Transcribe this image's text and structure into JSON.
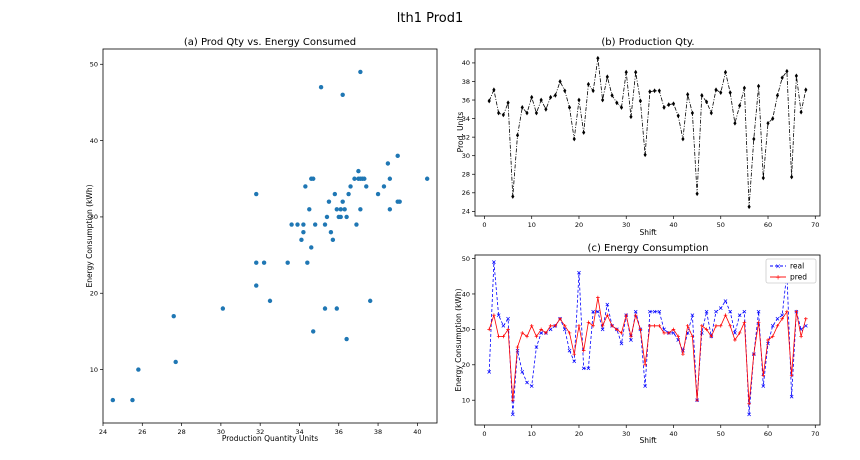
{
  "figure": {
    "title": "lth1 Prod1"
  },
  "chart_data": [
    {
      "type": "scatter",
      "title": "(a) Prod Qty vs. Energy Consumed",
      "xlabel": "Production Quantity Units",
      "ylabel": "Energy Consumption (kWh)",
      "xlim": [
        24,
        41
      ],
      "ylim": [
        3,
        52
      ],
      "xticks": [
        24,
        26,
        28,
        30,
        32,
        34,
        36,
        38,
        40
      ],
      "yticks": [
        10,
        20,
        30,
        40,
        50
      ],
      "color": "#1f77b4",
      "points": [
        [
          24.5,
          6
        ],
        [
          25.5,
          6
        ],
        [
          25.8,
          10
        ],
        [
          27.6,
          17
        ],
        [
          27.7,
          11
        ],
        [
          30.1,
          18
        ],
        [
          31.8,
          33
        ],
        [
          31.8,
          24
        ],
        [
          31.8,
          21
        ],
        [
          32.2,
          24
        ],
        [
          32.5,
          19
        ],
        [
          33.4,
          24
        ],
        [
          33.6,
          29
        ],
        [
          33.9,
          29
        ],
        [
          34.1,
          27
        ],
        [
          34.2,
          29
        ],
        [
          34.2,
          28
        ],
        [
          34.3,
          34
        ],
        [
          34.4,
          24
        ],
        [
          34.5,
          31
        ],
        [
          34.6,
          35
        ],
        [
          34.6,
          26
        ],
        [
          34.7,
          35
        ],
        [
          34.7,
          15
        ],
        [
          34.8,
          29
        ],
        [
          35.1,
          47
        ],
        [
          35.3,
          29
        ],
        [
          35.3,
          18
        ],
        [
          35.4,
          30
        ],
        [
          35.5,
          32
        ],
        [
          35.6,
          28
        ],
        [
          35.7,
          27
        ],
        [
          35.8,
          33
        ],
        [
          35.9,
          31
        ],
        [
          35.9,
          18
        ],
        [
          36.0,
          30
        ],
        [
          36.1,
          31
        ],
        [
          36.1,
          30
        ],
        [
          36.2,
          32
        ],
        [
          36.2,
          46
        ],
        [
          36.3,
          31
        ],
        [
          36.4,
          30
        ],
        [
          36.4,
          14
        ],
        [
          36.5,
          33
        ],
        [
          36.6,
          34
        ],
        [
          36.8,
          35
        ],
        [
          36.9,
          29
        ],
        [
          37.0,
          35
        ],
        [
          37.0,
          36
        ],
        [
          37.1,
          35
        ],
        [
          37.1,
          49
        ],
        [
          37.1,
          31
        ],
        [
          37.2,
          35
        ],
        [
          37.3,
          35
        ],
        [
          37.4,
          34
        ],
        [
          37.6,
          19
        ],
        [
          38.0,
          33
        ],
        [
          38.3,
          34
        ],
        [
          38.5,
          37
        ],
        [
          38.6,
          35
        ],
        [
          38.6,
          31
        ],
        [
          39.0,
          38
        ],
        [
          39.0,
          32
        ],
        [
          39.1,
          32
        ],
        [
          40.5,
          35
        ]
      ]
    },
    {
      "type": "line",
      "title": "(b) Production Qty.",
      "xlabel": "Shift",
      "ylabel": "Prod. Units",
      "xlim": [
        -2,
        71
      ],
      "ylim": [
        23.5,
        41.5
      ],
      "xticks": [
        0,
        10,
        20,
        30,
        40,
        50,
        60,
        70
      ],
      "yticks": [
        24,
        26,
        28,
        30,
        32,
        34,
        36,
        38,
        40
      ],
      "color": "#000000",
      "x": [
        1,
        2,
        3,
        4,
        5,
        6,
        7,
        8,
        9,
        10,
        11,
        12,
        13,
        14,
        15,
        16,
        17,
        18,
        19,
        20,
        21,
        22,
        23,
        24,
        25,
        26,
        27,
        28,
        29,
        30,
        31,
        32,
        33,
        34,
        35,
        36,
        37,
        38,
        39,
        40,
        41,
        42,
        43,
        44,
        45,
        46,
        47,
        48,
        49,
        50,
        51,
        52,
        53,
        54,
        55,
        56,
        57,
        58,
        59,
        60,
        61,
        62,
        63,
        64,
        65,
        66,
        67,
        68
      ],
      "y": [
        35.9,
        37.1,
        34.6,
        34.4,
        35.7,
        25.6,
        32.2,
        35.2,
        34.6,
        36.3,
        34.6,
        36.0,
        35.0,
        36.3,
        36.5,
        38.0,
        37.0,
        35.2,
        31.8,
        36.0,
        32.5,
        37.7,
        37.0,
        40.5,
        36.0,
        38.5,
        36.5,
        35.7,
        35.2,
        39.0,
        34.2,
        39.0,
        35.9,
        30.1,
        36.9,
        37.0,
        37.0,
        35.2,
        35.5,
        35.6,
        34.3,
        31.8,
        36.6,
        34.6,
        25.9,
        36.5,
        35.8,
        34.6,
        37.1,
        36.8,
        39.0,
        36.8,
        33.5,
        35.4,
        37.3,
        24.5,
        31.8,
        37.5,
        27.6,
        33.5,
        34.0,
        36.5,
        38.4,
        39.1,
        27.7,
        38.6,
        34.7,
        37.1
      ]
    },
    {
      "type": "line",
      "title": "(c) Energy Consumption",
      "xlabel": "Shift",
      "ylabel": "Energy Consumption (kWh)",
      "xlim": [
        -2,
        71
      ],
      "ylim": [
        3,
        51
      ],
      "xticks": [
        0,
        10,
        20,
        30,
        40,
        50,
        60,
        70
      ],
      "yticks": [
        10,
        20,
        30,
        40,
        50
      ],
      "legend_position": "top-right",
      "x": [
        1,
        2,
        3,
        4,
        5,
        6,
        7,
        8,
        9,
        10,
        11,
        12,
        13,
        14,
        15,
        16,
        17,
        18,
        19,
        20,
        21,
        22,
        23,
        24,
        25,
        26,
        27,
        28,
        29,
        30,
        31,
        32,
        33,
        34,
        35,
        36,
        37,
        38,
        39,
        40,
        41,
        42,
        43,
        44,
        45,
        46,
        47,
        48,
        49,
        50,
        51,
        52,
        53,
        54,
        55,
        56,
        57,
        58,
        59,
        60,
        61,
        62,
        63,
        64,
        65,
        66,
        67,
        68
      ],
      "series": [
        {
          "name": "real",
          "color": "#0000ff",
          "values": [
            18,
            49,
            34,
            31,
            33,
            6,
            24,
            18,
            15,
            14,
            25,
            29,
            29,
            30,
            31,
            33,
            30,
            24,
            21,
            46,
            19,
            19,
            35,
            35,
            30,
            37,
            31,
            30,
            26,
            34,
            27,
            35,
            30,
            14,
            35,
            35,
            35,
            30,
            29,
            29,
            27,
            24,
            29,
            34,
            10,
            29,
            35,
            28,
            35,
            36,
            38,
            35,
            29,
            34,
            35,
            6,
            23,
            35,
            14,
            26,
            31,
            33,
            34,
            46,
            11,
            35,
            30,
            31
          ]
        },
        {
          "name": "pred",
          "color": "#ff0000",
          "values": [
            30,
            34,
            28,
            28,
            30,
            10,
            25,
            29,
            28,
            31,
            28,
            30,
            29,
            31,
            31,
            33,
            31,
            29,
            23,
            31,
            24,
            32,
            31,
            39,
            31,
            34,
            31,
            30,
            29,
            34,
            28,
            34,
            30,
            20,
            31,
            31,
            31,
            29,
            29,
            30,
            28,
            23,
            31,
            28,
            10,
            31,
            30,
            28,
            31,
            31,
            34,
            31,
            27,
            29,
            32,
            9,
            23,
            32,
            17,
            27,
            28,
            31,
            33,
            35,
            17,
            35,
            28,
            33
          ]
        }
      ]
    }
  ]
}
